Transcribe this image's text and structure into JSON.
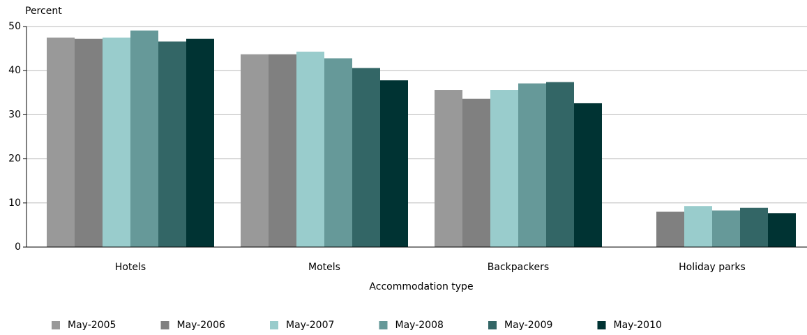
{
  "chart_data": {
    "type": "bar",
    "y_label": "Percent",
    "x_label": "Accommodation type",
    "categories": [
      "Hotels",
      "Motels",
      "Backpackers",
      "Holiday parks"
    ],
    "series": [
      {
        "name": "May-2005",
        "color": "#999999",
        "values": [
          47.5,
          43.7,
          35.6,
          null
        ]
      },
      {
        "name": "May-2006",
        "color": "#808080",
        "values": [
          47.2,
          43.7,
          33.6,
          8.0
        ]
      },
      {
        "name": "May-2007",
        "color": "#99cccc",
        "values": [
          47.5,
          44.3,
          35.6,
          9.3
        ]
      },
      {
        "name": "May-2008",
        "color": "#669999",
        "values": [
          49.1,
          42.8,
          37.1,
          8.3
        ]
      },
      {
        "name": "May-2009",
        "color": "#336666",
        "values": [
          46.6,
          40.6,
          37.4,
          8.9
        ]
      },
      {
        "name": "May-2010",
        "color": "#003333",
        "values": [
          47.2,
          37.8,
          32.6,
          7.7
        ]
      }
    ],
    "ylim": [
      0,
      50
    ],
    "yticks": [
      0,
      10,
      20,
      30,
      40,
      50
    ],
    "grid": true,
    "legend": "bottom"
  }
}
